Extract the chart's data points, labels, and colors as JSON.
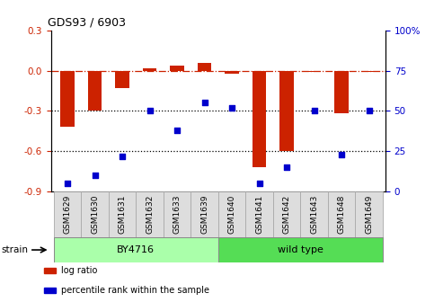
{
  "title": "GDS93 / 6903",
  "samples": [
    "GSM1629",
    "GSM1630",
    "GSM1631",
    "GSM1632",
    "GSM1633",
    "GSM1639",
    "GSM1640",
    "GSM1641",
    "GSM1642",
    "GSM1643",
    "GSM1648",
    "GSM1649"
  ],
  "log_ratio": [
    -0.42,
    -0.3,
    -0.13,
    0.02,
    0.04,
    0.06,
    -0.02,
    -0.72,
    -0.6,
    -0.01,
    -0.32,
    -0.01
  ],
  "percentile": [
    5,
    10,
    22,
    50,
    38,
    55,
    52,
    5,
    15,
    50,
    23,
    50
  ],
  "bar_color": "#cc2200",
  "dot_color": "#0000cc",
  "zero_line_color": "#cc2200",
  "dotted_line_color": "#000000",
  "ylim_left": [
    -0.9,
    0.3
  ],
  "ylim_right": [
    0,
    100
  ],
  "yticks_left": [
    0.3,
    0.0,
    -0.3,
    -0.6,
    -0.9
  ],
  "yticks_right": [
    100,
    75,
    50,
    25,
    0
  ],
  "strain_groups": [
    {
      "label": "BY4716",
      "n_samples": 6,
      "color": "#aaffaa"
    },
    {
      "label": "wild type",
      "n_samples": 6,
      "color": "#55dd55"
    }
  ],
  "strain_label": "strain",
  "legend_items": [
    {
      "label": "log ratio",
      "color": "#cc2200"
    },
    {
      "label": "percentile rank within the sample",
      "color": "#0000cc"
    }
  ]
}
